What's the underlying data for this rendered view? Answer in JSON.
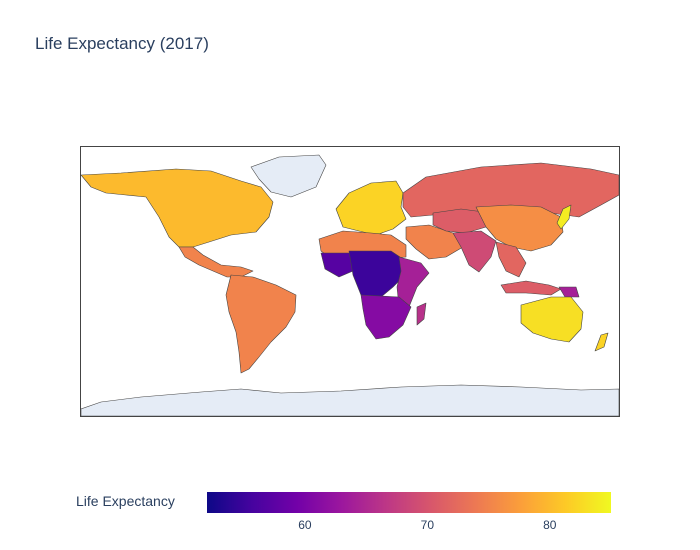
{
  "title": "Life Expectancy (2017)",
  "colorbar": {
    "label": "Life Expectancy",
    "min": 52,
    "max": 85,
    "ticks": [
      {
        "value": 60,
        "label": "60"
      },
      {
        "value": 70,
        "label": "70"
      },
      {
        "value": 80,
        "label": "80"
      }
    ],
    "colorscale": [
      "#0d0887",
      "#46039f",
      "#7201a8",
      "#9c179e",
      "#bd3786",
      "#d8576b",
      "#ed7953",
      "#fb9f3a",
      "#fdca26",
      "#f0f921"
    ]
  },
  "colors": {
    "no_data": "#e5ecf6",
    "border": "#444444",
    "title": "#2a3f5f"
  },
  "regions": [
    {
      "name": "Greenland",
      "value": null
    },
    {
      "name": "North America",
      "value": 80
    },
    {
      "name": "Central America",
      "value": 75
    },
    {
      "name": "South America",
      "value": 75
    },
    {
      "name": "Europe",
      "value": 82
    },
    {
      "name": "Russia",
      "value": 72
    },
    {
      "name": "North Africa",
      "value": 75
    },
    {
      "name": "West Africa",
      "value": 57
    },
    {
      "name": "Central Africa",
      "value": 55
    },
    {
      "name": "East Africa",
      "value": 64
    },
    {
      "name": "Southern Africa",
      "value": 61
    },
    {
      "name": "Madagascar",
      "value": 66
    },
    {
      "name": "Middle East",
      "value": 75
    },
    {
      "name": "Central Asia",
      "value": 71
    },
    {
      "name": "South Asia",
      "value": 69
    },
    {
      "name": "China",
      "value": 76
    },
    {
      "name": "Southeast Asia",
      "value": 72
    },
    {
      "name": "Japan",
      "value": 84
    },
    {
      "name": "Indonesia",
      "value": 71
    },
    {
      "name": "Papua New Guinea",
      "value": 64
    },
    {
      "name": "Australia",
      "value": 83
    },
    {
      "name": "New Zealand",
      "value": 82
    },
    {
      "name": "Antarctica",
      "value": null
    }
  ]
}
